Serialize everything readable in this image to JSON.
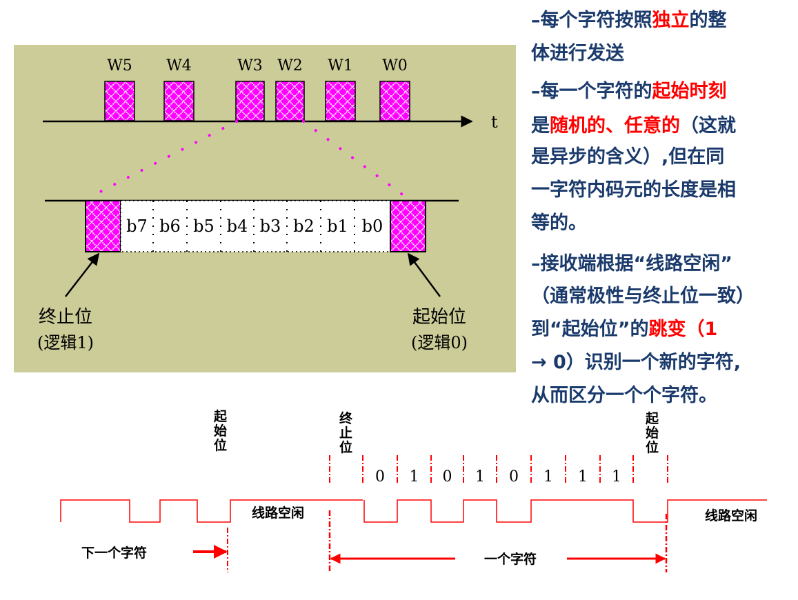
{
  "top_diagram": {
    "words": [
      "W5",
      "W4",
      "W3",
      "W2",
      "W1",
      "W0"
    ],
    "time_axis_label": "t",
    "bits": [
      "b7",
      "b6",
      "b5",
      "b4",
      "b3",
      "b2",
      "b1",
      "b0"
    ],
    "stop_bit_label": "终止位",
    "stop_bit_logic": "(逻辑1)",
    "start_bit_label": "起始位",
    "start_bit_logic": "(逻辑0)",
    "background_color": "#cccc99",
    "block_color": "#ff00ff"
  },
  "notes": {
    "p1": {
      "a": "–每个字符按照",
      "b": "独立",
      "c": "的整",
      "d": "体进行发送"
    },
    "p2": {
      "a": "–每一个字符的",
      "b": "起始时刻",
      "c": "是",
      "d": "随机的、任意的",
      "e": "（这就",
      "f": "是异步的含义）,但在同",
      "g": "一字符内码元的长度是相",
      "h": "等的。"
    },
    "p3": {
      "a": "–接收端根据“线路空闲”",
      "b": "（通常极性与终止位一致）",
      "c": "到“起始位”的",
      "d": "跳变",
      "e": "（1",
      "f": "→ 0）识别一个新的字符,",
      "g": "从而区分一个个字符。"
    },
    "text_color": "#1a3a6b",
    "highlight_color": "#ff0000"
  },
  "waveform": {
    "start_bit_left": "起始位",
    "stop_bit": "终止位",
    "start_bit_right": "起始位",
    "bits": [
      "0",
      "1",
      "0",
      "1",
      "0",
      "1",
      "1",
      "1"
    ],
    "idle_left": "线路空闲",
    "idle_right": "线路空闲",
    "next_char": "下一个字符",
    "one_char": "一个字符",
    "line_color": "#ff0000"
  }
}
